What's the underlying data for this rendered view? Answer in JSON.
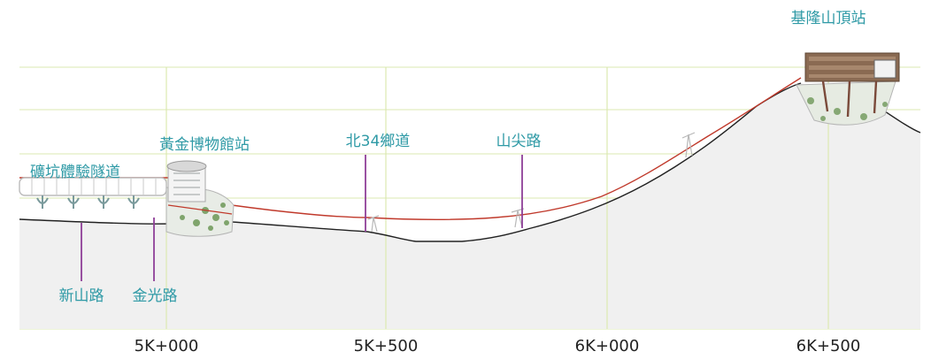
{
  "stations": {
    "top": "基隆山頂站",
    "museum": "黃金博物館站"
  },
  "roads": {
    "tunnel": "礦坑體驗隧道",
    "xinshan": "新山路",
    "jinguang": "金光路",
    "bei34": "北34鄉道",
    "shanjian": "山尖路"
  },
  "chainage": {
    "k5000": "5K+000",
    "k5500": "5K+500",
    "k6000": "6K+000",
    "k6500": "6K+500"
  },
  "colors": {
    "gridline": "#dbe8b0",
    "ground_fill": "#f0f0f0",
    "ground_line": "#222222",
    "cable_line": "#c0392b",
    "label_text": "#2f9aa6",
    "road_marker": "#8e3f98",
    "chainage_text": "#222222"
  }
}
